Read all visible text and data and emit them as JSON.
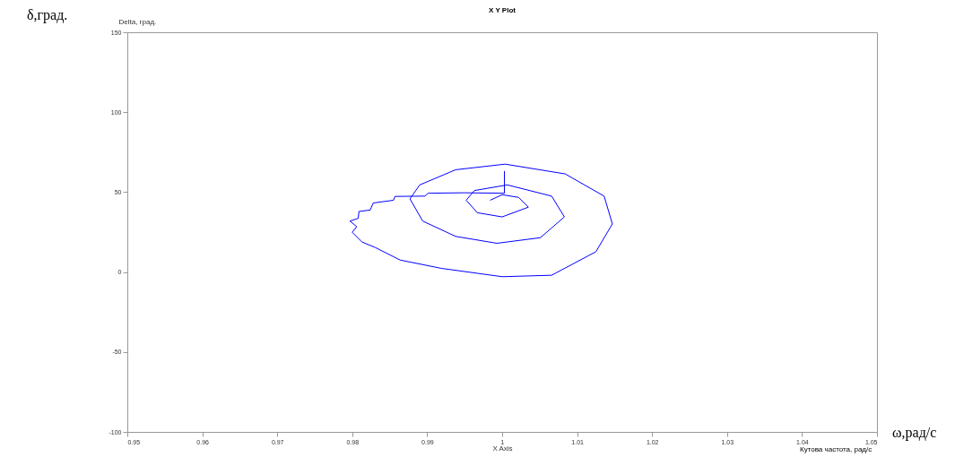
{
  "chart_data": {
    "type": "line",
    "title": "X Y Plot",
    "xlabel": "X Axis",
    "ylabel": "Delta, град.",
    "annotations": [
      "δ,град.",
      "Кутова частота, рад/с",
      "ω,рад/с"
    ],
    "x": [
      1.0003,
      1.0003,
      0.9949,
      0.9901,
      0.9897,
      0.9857,
      0.9855,
      0.9828,
      0.9824,
      0.9809,
      0.9808,
      0.9797,
      0.9806,
      0.98,
      0.9813,
      0.9831,
      0.9864,
      0.9919,
      1.0,
      1.0066,
      1.0125,
      1.0147,
      1.0136,
      1.0084,
      1.0004,
      0.9938,
      0.989,
      0.9877,
      0.9894,
      0.9938,
      0.9993,
      1.0051,
      1.0083,
      1.0066,
      1.0007,
      0.9963,
      0.9952,
      0.9967,
      1.0,
      1.0035,
      1.0022,
      1.0,
      0.9984
    ],
    "series": [
      {
        "color": "#0000ff",
        "values": [
          63.2,
          49.3,
          49.6,
          49.3,
          47.5,
          47.3,
          44.9,
          43.2,
          38.8,
          37.9,
          33.6,
          31.9,
          28.4,
          24.9,
          18.8,
          15.3,
          7.5,
          2.3,
          -2.9,
          -2.0,
          12.7,
          30.1,
          47.5,
          61.4,
          67.5,
          64.0,
          54.5,
          45.8,
          31.9,
          22.3,
          18.0,
          21.5,
          34.5,
          47.5,
          54.5,
          51.0,
          44.9,
          37.1,
          34.5,
          40.6,
          46.7,
          48.4,
          44.9
        ]
      }
    ],
    "xlim": [
      0.95,
      1.05
    ],
    "xticks": [
      0.95,
      0.96,
      0.97,
      0.98,
      0.99,
      1,
      1.01,
      1.02,
      1.03,
      1.04,
      1.05
    ],
    "ylim": [
      -100,
      150
    ],
    "yticks": [
      -100,
      -50,
      0,
      50,
      100,
      150
    ],
    "grid": false,
    "line_style": "solid"
  }
}
